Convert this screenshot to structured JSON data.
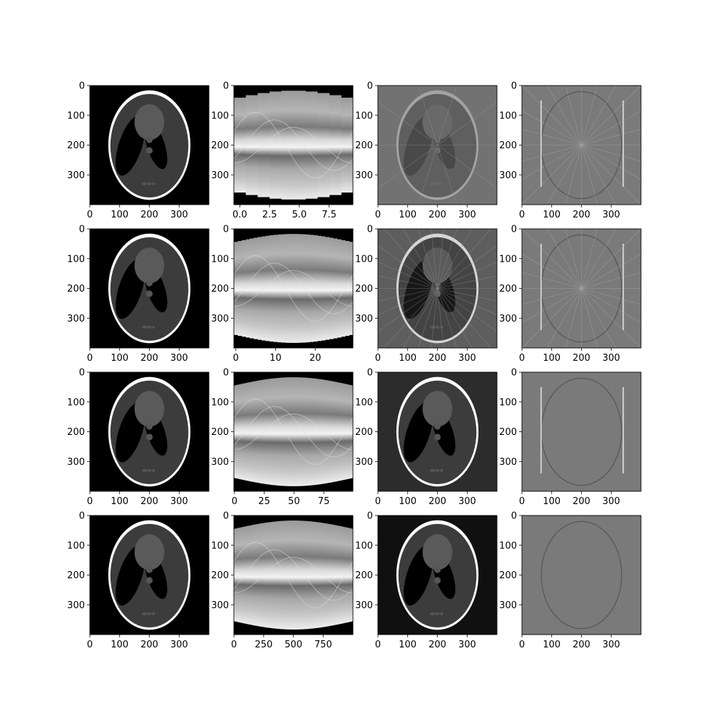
{
  "chart_data": {
    "type": "image-grid",
    "rows": 4,
    "cols": 4,
    "image_cmap": "gray",
    "panels": [
      {
        "id": "r1c1",
        "kind": "phantom",
        "xlim": [
          0,
          400
        ],
        "ylim": [
          0,
          400
        ],
        "xticks": [
          "0",
          "100",
          "200",
          "300"
        ],
        "yticks": [
          "0",
          "100",
          "200",
          "300"
        ]
      },
      {
        "id": "r1c2",
        "kind": "sinogram",
        "projections": 10,
        "xlim": [
          -0.5,
          9.5
        ],
        "ylim": [
          0,
          400
        ],
        "xticks": [
          "0.0",
          "2.5",
          "5.0",
          "7.5"
        ],
        "xtick_values": [
          0,
          2.5,
          5,
          7.5
        ],
        "yticks": [
          "0",
          "100",
          "200",
          "300"
        ]
      },
      {
        "id": "r1c3",
        "kind": "reconstruction",
        "projections": 10,
        "xlim": [
          0,
          400
        ],
        "ylim": [
          0,
          400
        ],
        "xticks": [
          "0",
          "100",
          "200",
          "300"
        ],
        "yticks": [
          "0",
          "100",
          "200",
          "300"
        ]
      },
      {
        "id": "r1c4",
        "kind": "error",
        "projections": 10,
        "xlim": [
          0,
          400
        ],
        "ylim": [
          0,
          400
        ],
        "xticks": [
          "0",
          "100",
          "200",
          "300"
        ],
        "yticks": [
          "0",
          "100",
          "200",
          "300"
        ]
      },
      {
        "id": "r2c1",
        "kind": "phantom",
        "xlim": [
          0,
          400
        ],
        "ylim": [
          0,
          400
        ],
        "xticks": [
          "0",
          "100",
          "200",
          "300"
        ],
        "yticks": [
          "0",
          "100",
          "200",
          "300"
        ]
      },
      {
        "id": "r2c2",
        "kind": "sinogram",
        "projections": 30,
        "xlim": [
          -0.5,
          29.5
        ],
        "ylim": [
          0,
          400
        ],
        "xticks": [
          "0",
          "10",
          "20"
        ],
        "xtick_values": [
          0,
          10,
          20
        ],
        "yticks": [
          "0",
          "100",
          "200",
          "300"
        ]
      },
      {
        "id": "r2c3",
        "kind": "reconstruction",
        "projections": 30,
        "xlim": [
          0,
          400
        ],
        "ylim": [
          0,
          400
        ],
        "xticks": [
          "0",
          "100",
          "200",
          "300"
        ],
        "yticks": [
          "0",
          "100",
          "200",
          "300"
        ]
      },
      {
        "id": "r2c4",
        "kind": "error",
        "projections": 30,
        "xlim": [
          0,
          400
        ],
        "ylim": [
          0,
          400
        ],
        "xticks": [
          "0",
          "100",
          "200",
          "300"
        ],
        "yticks": [
          "0",
          "100",
          "200",
          "300"
        ]
      },
      {
        "id": "r3c1",
        "kind": "phantom",
        "xlim": [
          0,
          400
        ],
        "ylim": [
          0,
          400
        ],
        "xticks": [
          "0",
          "100",
          "200",
          "300"
        ],
        "yticks": [
          "0",
          "100",
          "200",
          "300"
        ]
      },
      {
        "id": "r3c2",
        "kind": "sinogram",
        "projections": 100,
        "xlim": [
          -0.5,
          99.5
        ],
        "ylim": [
          0,
          400
        ],
        "xticks": [
          "0",
          "25",
          "50",
          "75"
        ],
        "xtick_values": [
          0,
          25,
          50,
          75
        ],
        "yticks": [
          "0",
          "100",
          "200",
          "300"
        ]
      },
      {
        "id": "r3c3",
        "kind": "reconstruction",
        "projections": 100,
        "xlim": [
          0,
          400
        ],
        "ylim": [
          0,
          400
        ],
        "xticks": [
          "0",
          "100",
          "200",
          "300"
        ],
        "yticks": [
          "0",
          "100",
          "200",
          "300"
        ]
      },
      {
        "id": "r3c4",
        "kind": "error",
        "projections": 100,
        "xlim": [
          0,
          400
        ],
        "ylim": [
          0,
          400
        ],
        "xticks": [
          "0",
          "100",
          "200",
          "300"
        ],
        "yticks": [
          "0",
          "100",
          "200",
          "300"
        ]
      },
      {
        "id": "r4c1",
        "kind": "phantom",
        "xlim": [
          0,
          400
        ],
        "ylim": [
          0,
          400
        ],
        "xticks": [
          "0",
          "100",
          "200",
          "300"
        ],
        "yticks": [
          "0",
          "100",
          "200",
          "300"
        ]
      },
      {
        "id": "r4c2",
        "kind": "sinogram",
        "projections": 1000,
        "xlim": [
          -0.5,
          999.5
        ],
        "ylim": [
          0,
          400
        ],
        "xticks": [
          "0",
          "250",
          "500",
          "750"
        ],
        "xtick_values": [
          0,
          250,
          500,
          750
        ],
        "yticks": [
          "0",
          "100",
          "200",
          "300"
        ]
      },
      {
        "id": "r4c3",
        "kind": "reconstruction",
        "projections": 1000,
        "xlim": [
          0,
          400
        ],
        "ylim": [
          0,
          400
        ],
        "xticks": [
          "0",
          "100",
          "200",
          "300"
        ],
        "yticks": [
          "0",
          "100",
          "200",
          "300"
        ]
      },
      {
        "id": "r4c4",
        "kind": "error",
        "projections": 1000,
        "xlim": [
          0,
          400
        ],
        "ylim": [
          0,
          400
        ],
        "xticks": [
          "0",
          "100",
          "200",
          "300"
        ],
        "yticks": [
          "0",
          "100",
          "200",
          "300"
        ]
      }
    ]
  }
}
